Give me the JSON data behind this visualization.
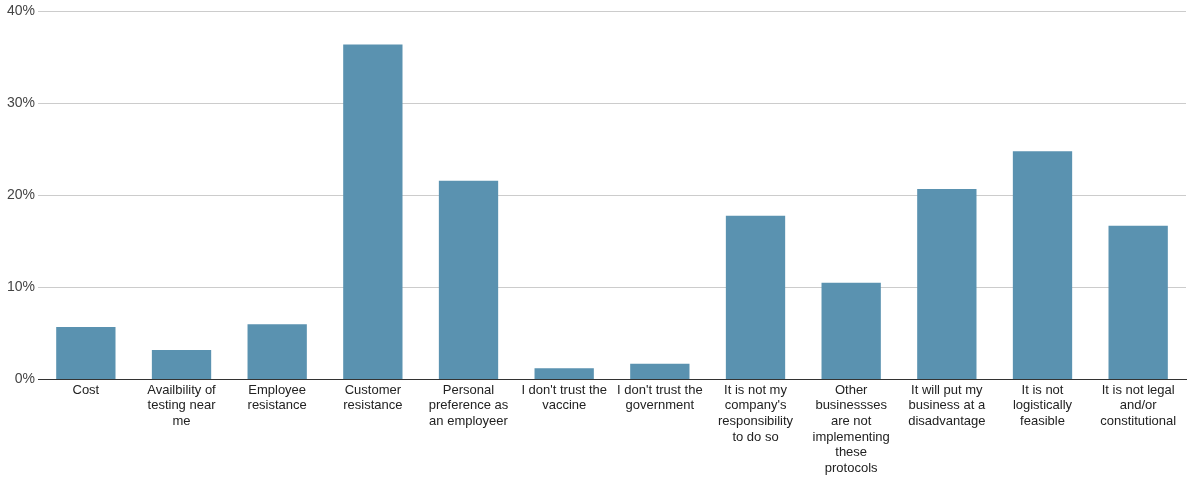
{
  "chart_data": {
    "type": "bar",
    "categories": [
      "Cost",
      "Availbility of testing near me",
      "Employee resistance",
      "Customer resistance",
      "Personal preference as an employeer",
      "I don't trust the vaccine",
      "I don't trust the government",
      "It is not my company's responsibility to do so",
      "Other businessses are not implementing these protocols",
      "It will put my business at a disadvantage",
      "It is not logistically feasible",
      "It is not legal and/or constitutional"
    ],
    "values": [
      5.7,
      3.2,
      6.0,
      36.4,
      21.6,
      1.2,
      1.7,
      17.8,
      10.5,
      20.7,
      24.8,
      16.7
    ],
    "color": "#5a92b0",
    "ylim": [
      0,
      40
    ],
    "yticks": [
      {
        "value": 0,
        "label": "0%"
      },
      {
        "value": 10,
        "label": "10%"
      },
      {
        "value": 20,
        "label": "20%"
      },
      {
        "value": 30,
        "label": "30%"
      },
      {
        "value": 40,
        "label": "40%"
      }
    ],
    "grid": "y",
    "legend": false
  }
}
